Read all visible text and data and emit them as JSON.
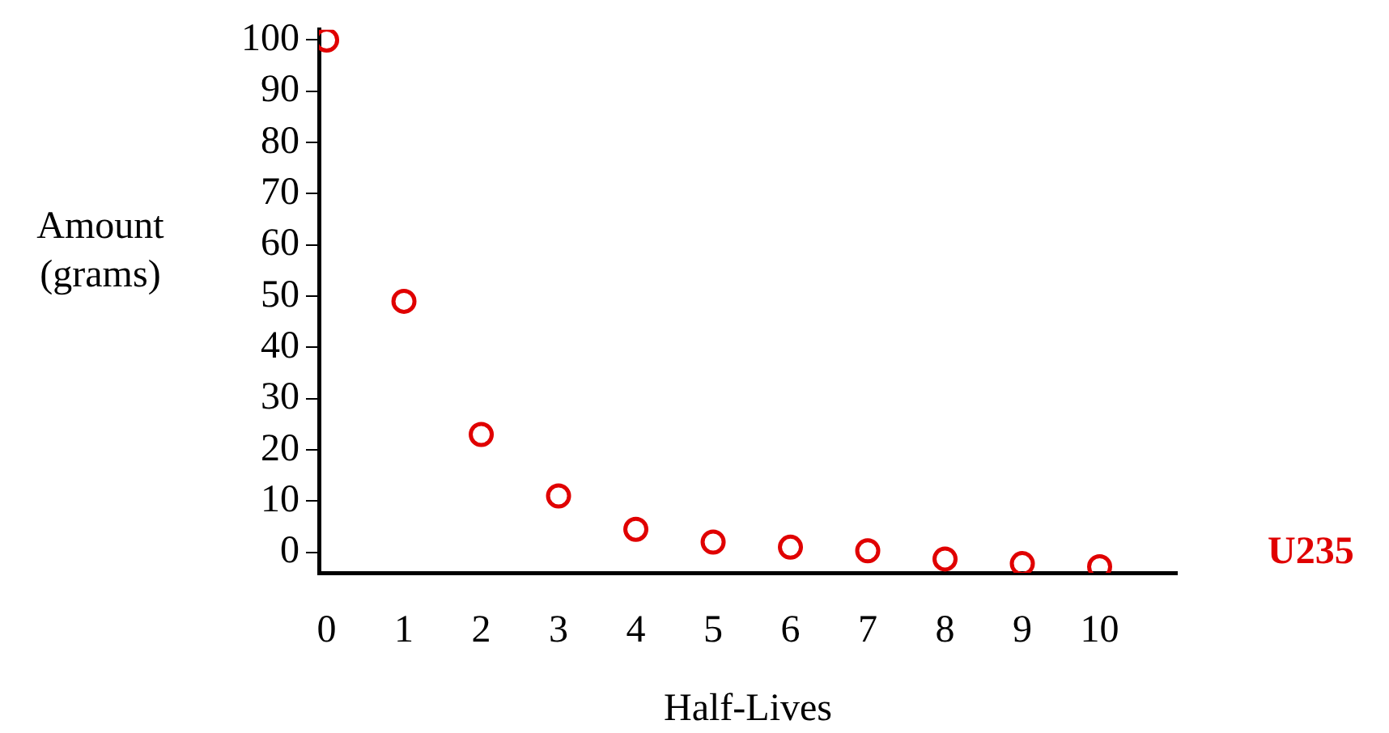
{
  "chart_data": {
    "type": "scatter",
    "xlabel": "Half-Lives",
    "ylabel": "Amount (grams)",
    "x": [
      0,
      1,
      2,
      3,
      4,
      5,
      6,
      7,
      8,
      9,
      10
    ],
    "series": [
      {
        "name": "U235",
        "color": "#e00000",
        "values": [
          100,
          49,
          23,
          11,
          4.5,
          2,
          1,
          0.3,
          -1.3,
          -2.2,
          -2.8
        ]
      }
    ],
    "xlim": [
      -0.1,
      11
    ],
    "ylim": [
      -4,
      102
    ],
    "xticks": [
      0,
      1,
      2,
      3,
      4,
      5,
      6,
      7,
      8,
      9,
      10
    ],
    "yticks": [
      0,
      10,
      20,
      30,
      40,
      50,
      60,
      70,
      80,
      90,
      100
    ],
    "legend": "right",
    "marker": "circle"
  }
}
